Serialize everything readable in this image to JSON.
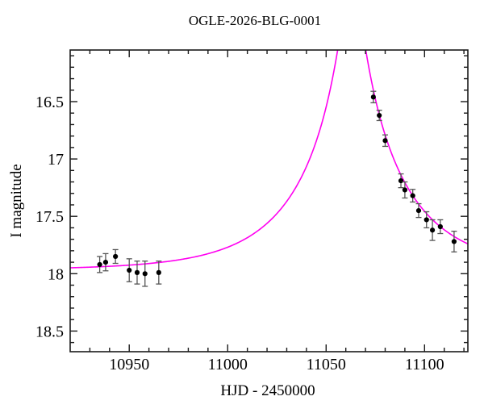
{
  "chart_data": {
    "type": "scatter",
    "title": "OGLE-2026-BLG-0001",
    "xlabel": "HJD - 2450000",
    "ylabel": "I magnitude",
    "x_axis": {
      "min": 10920,
      "max": 11122,
      "major_ticks": [
        10950,
        11000,
        11050,
        11100
      ],
      "major_tick_labels": [
        "10950",
        "11000",
        "11050",
        "11100"
      ],
      "minor_tick_step": 10
    },
    "y_axis": {
      "min": 16.05,
      "max": 18.68,
      "inverted_magnitude_axis": true,
      "major_ticks": [
        16.5,
        17.0,
        17.5,
        18.0,
        18.5
      ],
      "major_tick_labels": [
        "16.5",
        "17",
        "17.5",
        "18",
        "18.5"
      ],
      "minor_tick_step": 0.1
    },
    "points": [
      {
        "t": 10935,
        "mag": 17.92,
        "err": 0.07
      },
      {
        "t": 10938,
        "mag": 17.9,
        "err": 0.075
      },
      {
        "t": 10943,
        "mag": 17.85,
        "err": 0.06
      },
      {
        "t": 10950,
        "mag": 17.97,
        "err": 0.1
      },
      {
        "t": 10954,
        "mag": 17.99,
        "err": 0.1
      },
      {
        "t": 10958,
        "mag": 18.0,
        "err": 0.11
      },
      {
        "t": 10965,
        "mag": 17.99,
        "err": 0.1
      },
      {
        "t": 11074,
        "mag": 16.46,
        "err": 0.05
      },
      {
        "t": 11077,
        "mag": 16.62,
        "err": 0.045
      },
      {
        "t": 11080,
        "mag": 16.84,
        "err": 0.05
      },
      {
        "t": 11088,
        "mag": 17.19,
        "err": 0.06
      },
      {
        "t": 11090,
        "mag": 17.27,
        "err": 0.07
      },
      {
        "t": 11094,
        "mag": 17.32,
        "err": 0.055
      },
      {
        "t": 11097,
        "mag": 17.45,
        "err": 0.06
      },
      {
        "t": 11101,
        "mag": 17.53,
        "err": 0.07
      },
      {
        "t": 11104,
        "mag": 17.62,
        "err": 0.09
      },
      {
        "t": 11108,
        "mag": 17.59,
        "err": 0.06
      },
      {
        "t": 11115,
        "mag": 17.72,
        "err": 0.09
      }
    ],
    "model_curve": {
      "type": "paczynski_microlensing",
      "t0": 11063,
      "tE": 50,
      "u0": 0.097,
      "baseline_mag": 17.97
    },
    "colors": {
      "curve": "#FF00F0",
      "point": "#000000",
      "error_bar": "#555555",
      "axis": "#1a1a1a"
    }
  }
}
